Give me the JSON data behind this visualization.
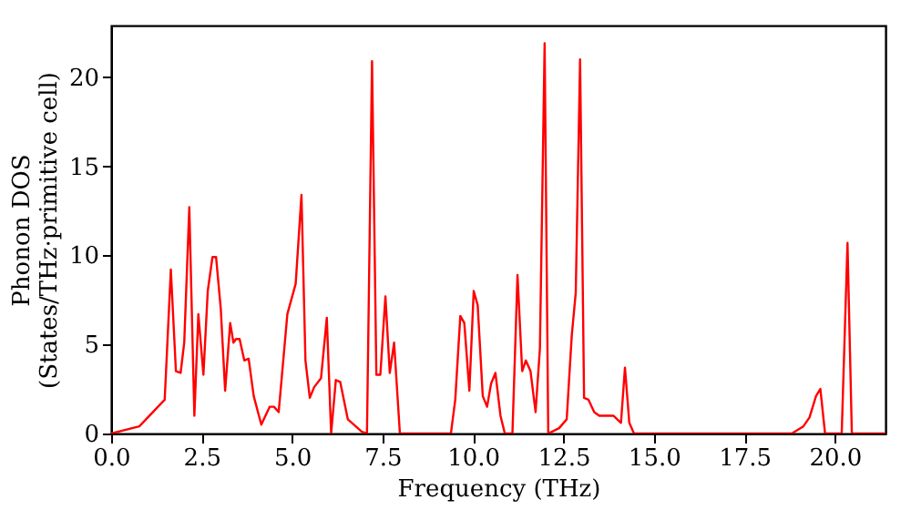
{
  "chart_data": {
    "type": "line",
    "xlabel": "Frequency (THz)",
    "ylabel": "Phonon DOS\n(States/THz·primitive cell)",
    "xlim": [
      0,
      21.4
    ],
    "ylim": [
      0,
      22.9
    ],
    "xticks": [
      {
        "value": 0,
        "label": "0.0"
      },
      {
        "value": 2.5,
        "label": "2.5"
      },
      {
        "value": 5,
        "label": "5.0"
      },
      {
        "value": 7.5,
        "label": "7.5"
      },
      {
        "value": 10,
        "label": "10.0"
      },
      {
        "value": 12.5,
        "label": "12.5"
      },
      {
        "value": 15,
        "label": "15.0"
      },
      {
        "value": 17.5,
        "label": "17.5"
      },
      {
        "value": 20,
        "label": "20.0"
      }
    ],
    "yticks": [
      0,
      5,
      10,
      15,
      20
    ],
    "grid": false,
    "marker": "none",
    "line_style": "solid",
    "series": [
      {
        "color": "#ff0000",
        "x": [
          0,
          0.78,
          1.48,
          1.65,
          1.79,
          1.92,
          2.02,
          2.16,
          2.3,
          2.41,
          2.55,
          2.67,
          2.8,
          2.9,
          3.03,
          3.15,
          3.29,
          3.38,
          3.45,
          3.55,
          3.68,
          3.8,
          3.94,
          4.15,
          4.38,
          4.5,
          4.63,
          4.87,
          5.1,
          5.26,
          5.37,
          5.49,
          5.61,
          5.8,
          5.96,
          6.08,
          6.21,
          6.33,
          6.54,
          6.93,
          7.07,
          7.21,
          7.33,
          7.44,
          7.58,
          7.7,
          7.82,
          7.98,
          9.39,
          9.51,
          9.65,
          9.76,
          9.9,
          10.02,
          10.13,
          10.27,
          10.39,
          10.5,
          10.62,
          10.76,
          10.88,
          11.09,
          11.23,
          11.36,
          11.46,
          11.59,
          11.73,
          11.85,
          11.98,
          12.08,
          12.38,
          12.59,
          12.73,
          12.84,
          12.96,
          13.07,
          13.19,
          13.35,
          13.49,
          13.88,
          14.09,
          14.2,
          14.32,
          14.45,
          18.81,
          19.13,
          19.3,
          19.48,
          19.6,
          19.73,
          20.19,
          20.35,
          20.47,
          21.4
        ],
        "values": [
          0,
          0.4,
          1.9,
          9.2,
          3.5,
          3.4,
          5.1,
          12.7,
          1.0,
          6.7,
          3.3,
          8.0,
          9.9,
          9.9,
          7.0,
          2.4,
          6.2,
          5.1,
          5.3,
          5.3,
          4.1,
          4.2,
          2.1,
          0.5,
          1.5,
          1.5,
          1.2,
          6.7,
          8.4,
          13.4,
          4.1,
          2.0,
          2.6,
          3.1,
          6.5,
          0,
          3.0,
          2.9,
          0.8,
          0.1,
          0,
          20.9,
          3.3,
          3.3,
          7.7,
          3.4,
          5.1,
          0,
          0,
          1.9,
          6.6,
          6.2,
          2.4,
          8.0,
          7.2,
          2.1,
          1.5,
          2.8,
          3.4,
          1.0,
          0,
          0,
          8.9,
          3.5,
          4.1,
          3.5,
          1.2,
          4.8,
          21.9,
          0,
          0.3,
          0.8,
          5.5,
          7.9,
          21.0,
          2.0,
          1.9,
          1.2,
          1.0,
          1.0,
          0.6,
          3.7,
          0.6,
          0,
          0,
          0.4,
          0.9,
          2.1,
          2.5,
          0,
          0,
          10.7,
          0,
          0
        ]
      }
    ]
  }
}
